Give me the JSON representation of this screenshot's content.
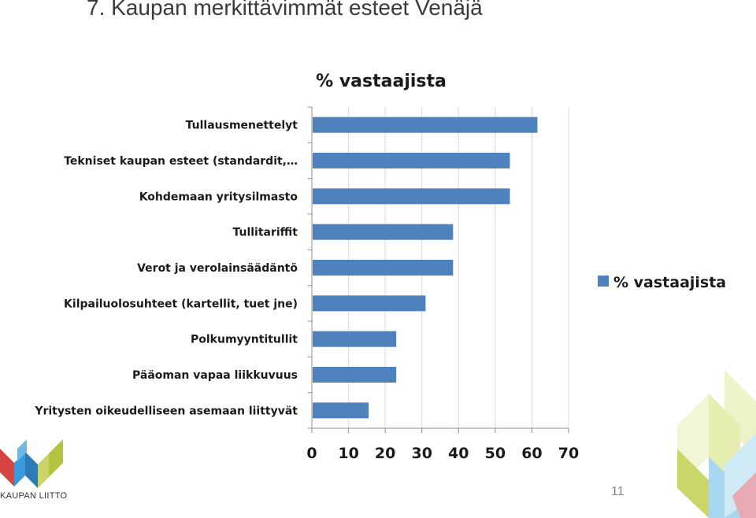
{
  "slide": {
    "title": "7. Kaupan merkittävimmät esteet Venäjä",
    "page_number": "11",
    "logo_text": "KAUPAN LIITTO"
  },
  "colors": {
    "bar": "#4F81BD",
    "gridline": "#d9d9d9",
    "axis": "#8c8c8c"
  },
  "chart_data": {
    "type": "bar",
    "orientation": "horizontal",
    "title": "% vastaajista",
    "categories": [
      "Tullausmenettelyt",
      "Tekniset kaupan esteet (standardit,…",
      "Kohdemaan yritysilmasto",
      "Tullitariffit",
      "Verot ja verolainsäädäntö",
      "Kilpailuolosuhteet (kartellit, tuet jne)",
      "Polkumyyntitullit",
      "Pääoman vapaa liikkuvuus",
      "Yritysten oikeudelliseen asemaan liittyvät"
    ],
    "series": [
      {
        "name": "% vastaajista",
        "values": [
          61.5,
          54,
          54,
          38.5,
          38.5,
          31,
          23,
          23,
          15.5
        ]
      }
    ],
    "xlim": [
      0,
      70
    ],
    "xticks": [
      0,
      10,
      20,
      30,
      40,
      50,
      60,
      70
    ],
    "tick_labels": [
      "0",
      "10",
      "20",
      "30",
      "40",
      "50",
      "60",
      "70"
    ],
    "grid": true,
    "legend": "right"
  }
}
